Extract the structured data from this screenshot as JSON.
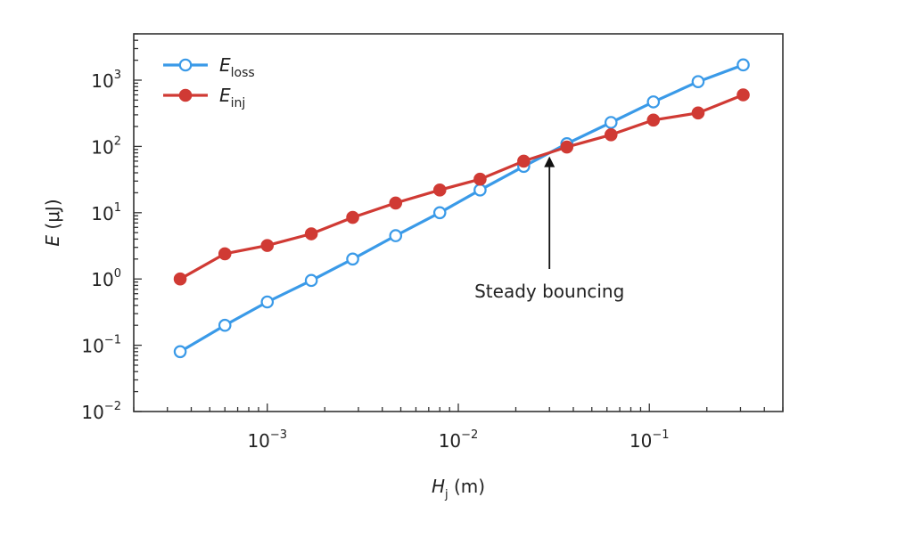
{
  "chart_data": {
    "type": "line",
    "x_scale": "log",
    "y_scale": "log",
    "xlim": [
      0.0002,
      0.5
    ],
    "ylim": [
      0.01,
      5000
    ],
    "x_tick_values": [
      0.001,
      0.01,
      0.1
    ],
    "x_tick_labels": [
      {
        "base": "10",
        "exp": "−3"
      },
      {
        "base": "10",
        "exp": "−2"
      },
      {
        "base": "10",
        "exp": "−1"
      }
    ],
    "y_tick_values": [
      0.01,
      0.1,
      1,
      10,
      100,
      1000
    ],
    "y_tick_labels": [
      {
        "base": "10",
        "exp": "−2"
      },
      {
        "base": "10",
        "exp": "−1"
      },
      {
        "base": "10",
        "exp": "0"
      },
      {
        "base": "10",
        "exp": "1"
      },
      {
        "base": "10",
        "exp": "2"
      },
      {
        "base": "10",
        "exp": "3"
      }
    ],
    "xlabel": {
      "main": "H",
      "sub": "j",
      "unit": " (m)"
    },
    "ylabel": {
      "main": "E",
      "unit": " (μJ)"
    },
    "legend_position": "top-left",
    "series": [
      {
        "name": {
          "main": "E",
          "sub": "loss"
        },
        "color": "#3a9ae8",
        "marker": "open-circle",
        "x": [
          0.00035,
          0.0006,
          0.001,
          0.0017,
          0.0028,
          0.0047,
          0.008,
          0.013,
          0.022,
          0.037,
          0.063,
          0.105,
          0.18,
          0.31
        ],
        "y": [
          0.08,
          0.2,
          0.45,
          0.95,
          2.0,
          4.5,
          10,
          22,
          50,
          110,
          230,
          470,
          950,
          1700
        ]
      },
      {
        "name": {
          "main": "E",
          "sub": "inj"
        },
        "color": "#d03a34",
        "marker": "filled-circle",
        "x": [
          0.00035,
          0.0006,
          0.001,
          0.0017,
          0.0028,
          0.0047,
          0.008,
          0.013,
          0.022,
          0.037,
          0.063,
          0.105,
          0.18,
          0.31
        ],
        "y": [
          1.0,
          2.4,
          3.2,
          4.8,
          8.5,
          14,
          22,
          32,
          60,
          98,
          150,
          250,
          320,
          600
        ]
      }
    ],
    "annotations": [
      {
        "text": "Steady bouncing",
        "arrow_to": {
          "x": 0.03,
          "y": 80
        }
      }
    ]
  }
}
